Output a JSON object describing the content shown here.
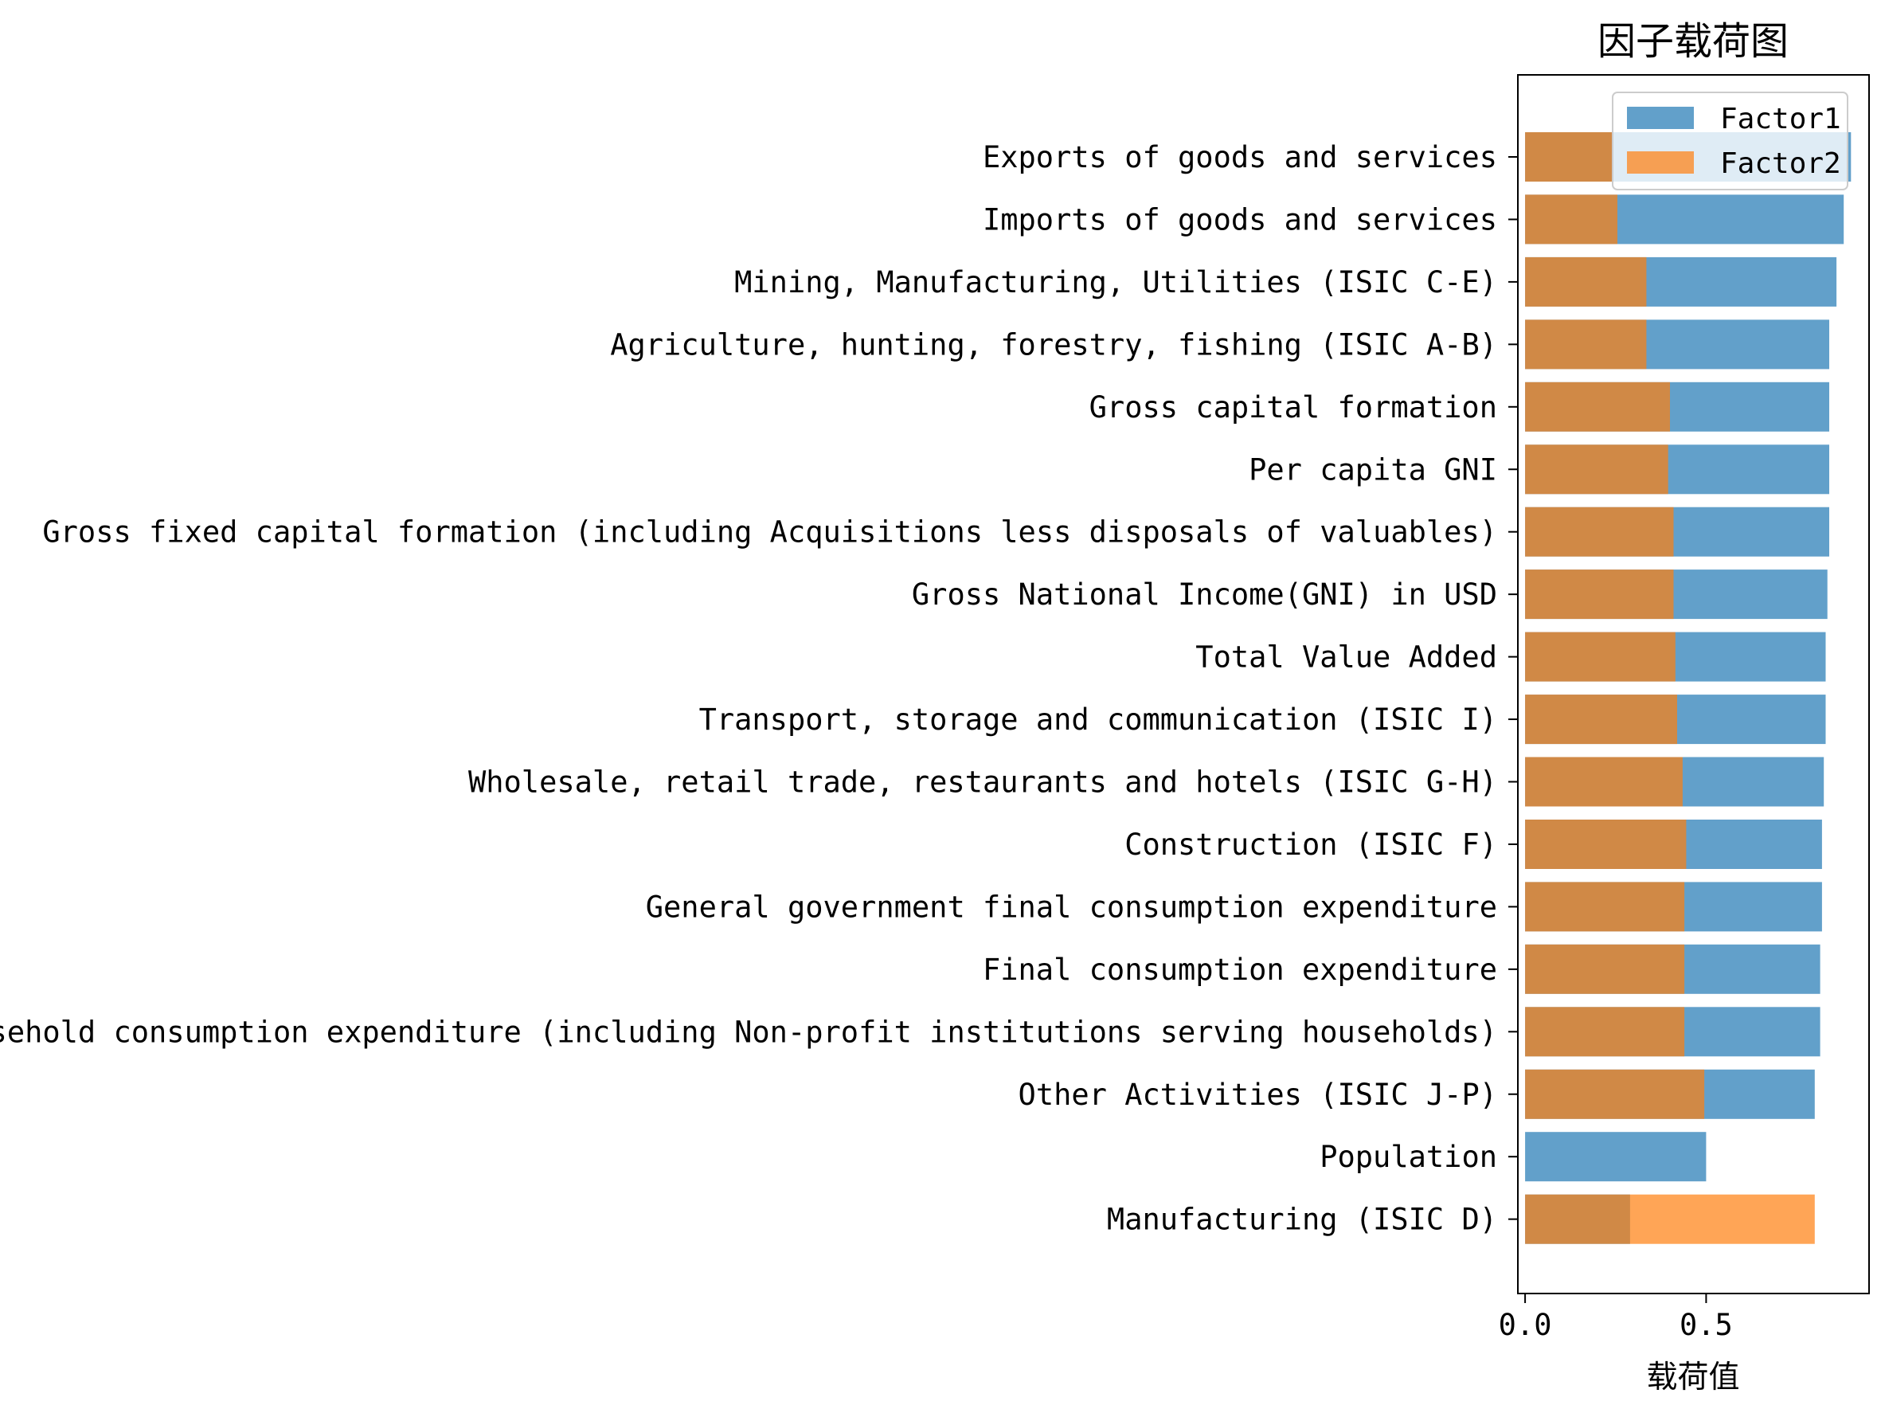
{
  "chart_data": {
    "type": "bar",
    "orientation": "horizontal",
    "stacked": false,
    "overlay": true,
    "title": "因子载荷图",
    "xlabel": "载荷值",
    "ylabel": "",
    "xlim": [
      -0.02,
      0.95
    ],
    "xticks": [
      {
        "value": 0.0,
        "label": "0.0"
      },
      {
        "value": 0.5,
        "label": "0.5"
      }
    ],
    "grid": false,
    "legend_position": "top-right",
    "categories": [
      "Exports of goods and services",
      "Imports of goods and services",
      "Mining, Manufacturing, Utilities (ISIC C-E)",
      "Agriculture, hunting, forestry, fishing (ISIC A-B)",
      "Gross capital formation",
      "Per capita GNI",
      "Gross fixed capital formation (including Acquisitions less disposals of valuables)",
      "Gross National Income(GNI) in USD",
      "Total Value Added",
      "Transport, storage and communication (ISIC I)",
      "Wholesale, retail trade, restaurants and hotels (ISIC G-H)",
      "Construction (ISIC F)",
      "General government final consumption expenditure",
      "Final consumption expenditure",
      "Household consumption expenditure (including Non-profit institutions serving households)",
      "Other Activities (ISIC J-P)",
      "Population",
      "Manufacturing (ISIC D)"
    ],
    "series": [
      {
        "name": "Factor1",
        "color": "#1f77b4",
        "alpha": 0.7,
        "values": [
          0.9,
          0.88,
          0.86,
          0.84,
          0.84,
          0.84,
          0.84,
          0.835,
          0.83,
          0.83,
          0.825,
          0.82,
          0.82,
          0.815,
          0.815,
          0.8,
          0.5,
          0.29
        ]
      },
      {
        "name": "Factor2",
        "color": "#ff7f0e",
        "alpha": 0.7,
        "values": [
          0.24,
          0.255,
          0.335,
          0.335,
          0.4,
          0.395,
          0.41,
          0.41,
          0.415,
          0.42,
          0.435,
          0.445,
          0.44,
          0.44,
          0.44,
          0.495,
          0.0,
          0.8
        ]
      }
    ]
  }
}
